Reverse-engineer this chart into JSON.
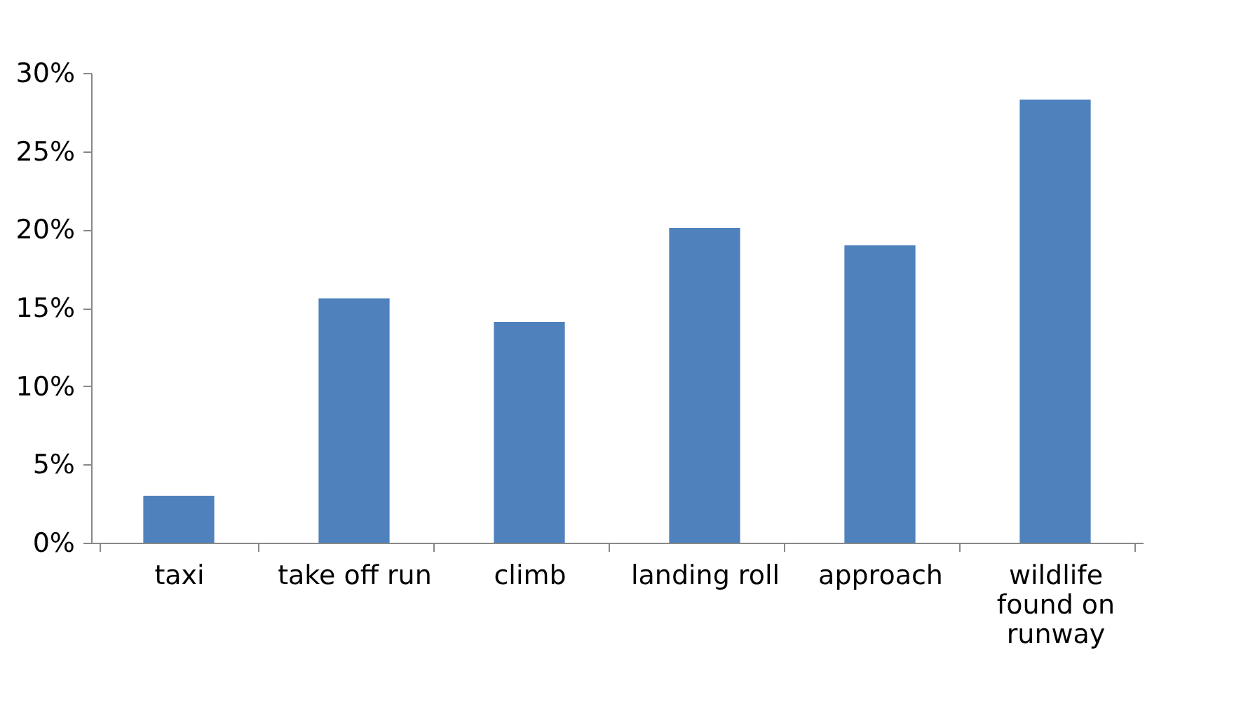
{
  "chart_data": {
    "type": "bar",
    "categories": [
      "taxi",
      "take off run",
      "climb",
      "landing roll",
      "approach",
      "wildlife found on runway"
    ],
    "values": [
      0.03,
      0.156,
      0.141,
      0.201,
      0.19,
      0.283
    ],
    "color": "#4f81bd",
    "ylim": [
      0,
      0.3
    ],
    "yticks": [
      {
        "value": 0,
        "label": "0%"
      },
      {
        "value": 0.05,
        "label": "5%"
      },
      {
        "value": 0.1,
        "label": "10%"
      },
      {
        "value": 0.15,
        "label": "15%"
      },
      {
        "value": 0.2,
        "label": "20%"
      },
      {
        "value": 0.25,
        "label": "25%"
      },
      {
        "value": 0.3,
        "label": "30%"
      }
    ],
    "grid": false
  }
}
